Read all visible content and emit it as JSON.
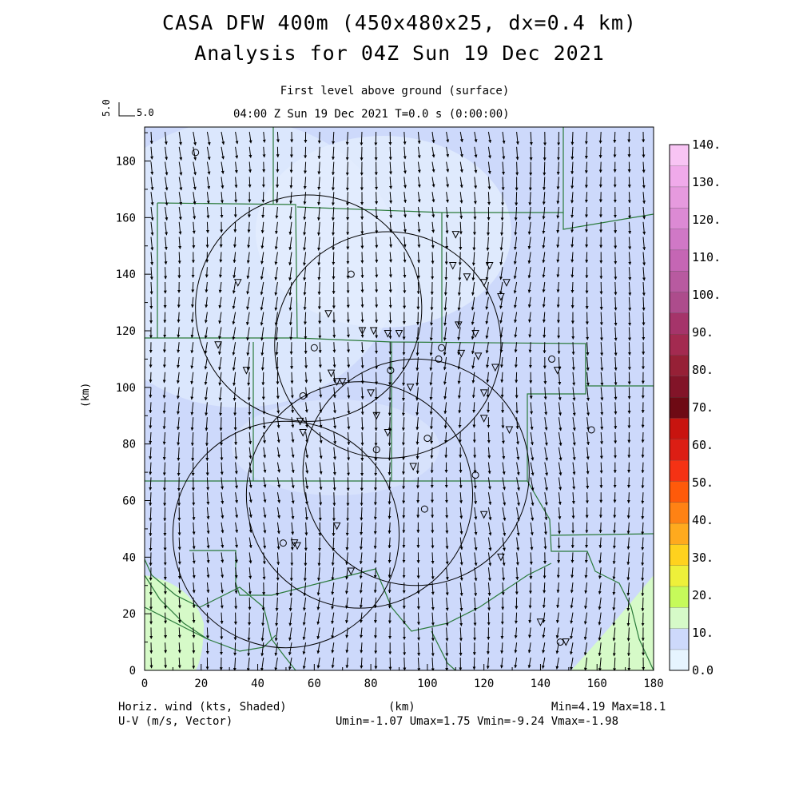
{
  "header": {
    "title_line1": "CASA DFW 400m (450x480x25, dx=0.4 km)",
    "title_line2": "Analysis for 04Z Sun 19 Dec 2021",
    "level": "First level above ground (surface)",
    "time_line": "04:00 Z Sun 19 Dec 2021    T=0.0 s (0:00:00)"
  },
  "reference_vector": {
    "vertical_label": "5.0",
    "horizontal_label": "5.0"
  },
  "axes": {
    "x_ticks": [
      "0",
      "20",
      "40",
      "60",
      "80",
      "100",
      "120",
      "140",
      "160",
      "180"
    ],
    "y_ticks": [
      "0",
      "20",
      "40",
      "60",
      "80",
      "100",
      "120",
      "140",
      "160",
      "180"
    ],
    "x_units": "(km)",
    "y_label": "(km)",
    "x_range_km": [
      0,
      180
    ],
    "y_range_km": [
      0,
      192
    ]
  },
  "colorbar": {
    "labels": [
      "0.0",
      "10.",
      "20.",
      "30.",
      "40.",
      "50.",
      "60.",
      "70.",
      "80.",
      "90.",
      "100.",
      "110.",
      "120.",
      "130.",
      "140."
    ],
    "colors": [
      "#e6f4ff",
      "#cdd9fb",
      "#d6fac8",
      "#c6fa5a",
      "#eef03a",
      "#ffd21e",
      "#ffaa1e",
      "#ff8214",
      "#ff5a0a",
      "#f53214",
      "#dc1e14",
      "#c8140f",
      "#6e0a14",
      "#821428",
      "#962036",
      "#a32a50",
      "#a5346a",
      "#ad4c8c",
      "#b85aa0",
      "#c566b4",
      "#d078c6",
      "#dc8ad4",
      "#e69ade",
      "#f0aaea",
      "#f8c4f4"
    ]
  },
  "legend": {
    "line1": "Horiz. wind (kts, Shaded)",
    "line2": "U-V (m/s, Vector)"
  },
  "stats": {
    "line1": "Min=4.19 Max=18.1",
    "line2": "Umin=-1.07 Umax=1.75 Vmin=-9.24 Vmax=-1.98"
  },
  "colors": {
    "background_field": "#cdd9fb",
    "light_zone": "#e6f4ff",
    "green_zone": "#d6fac8",
    "county_lines": "#2a7a3a"
  },
  "radars_km": [
    {
      "x": 58,
      "y": 128,
      "r": 40
    },
    {
      "x": 86,
      "y": 115,
      "r": 40
    },
    {
      "x": 50,
      "y": 48,
      "r": 40
    },
    {
      "x": 76,
      "y": 62,
      "r": 40
    },
    {
      "x": 96,
      "y": 70,
      "r": 40
    }
  ],
  "station_circles_km": [
    [
      18,
      183
    ],
    [
      73,
      140
    ],
    [
      60,
      114
    ],
    [
      56,
      97
    ],
    [
      87,
      106
    ],
    [
      104,
      110
    ],
    [
      105,
      114
    ],
    [
      100,
      82
    ],
    [
      82,
      78
    ],
    [
      99,
      57
    ],
    [
      49,
      45
    ],
    [
      117,
      69
    ],
    [
      144,
      110
    ],
    [
      158,
      85
    ],
    [
      147,
      10
    ]
  ],
  "station_triangles_km": [
    [
      33,
      137
    ],
    [
      26,
      115
    ],
    [
      36,
      106
    ],
    [
      65,
      126
    ],
    [
      77,
      120
    ],
    [
      81,
      120
    ],
    [
      86,
      119
    ],
    [
      90,
      119
    ],
    [
      110,
      154
    ],
    [
      109,
      143
    ],
    [
      114,
      139
    ],
    [
      122,
      143
    ],
    [
      120,
      137
    ],
    [
      128,
      137
    ],
    [
      126,
      132
    ],
    [
      111,
      122
    ],
    [
      117,
      119
    ],
    [
      118,
      111
    ],
    [
      112,
      112
    ],
    [
      124,
      107
    ],
    [
      66,
      105
    ],
    [
      68,
      102
    ],
    [
      70,
      102
    ],
    [
      80,
      98
    ],
    [
      94,
      100
    ],
    [
      120,
      98
    ],
    [
      120,
      89
    ],
    [
      129,
      85
    ],
    [
      82,
      90
    ],
    [
      55,
      88
    ],
    [
      56,
      84
    ],
    [
      86,
      84
    ],
    [
      95,
      72
    ],
    [
      68,
      51
    ],
    [
      53,
      45
    ],
    [
      54,
      44
    ],
    [
      73,
      35
    ],
    [
      120,
      55
    ],
    [
      126,
      40
    ],
    [
      140,
      17
    ],
    [
      146,
      106
    ],
    [
      149,
      10
    ]
  ]
}
